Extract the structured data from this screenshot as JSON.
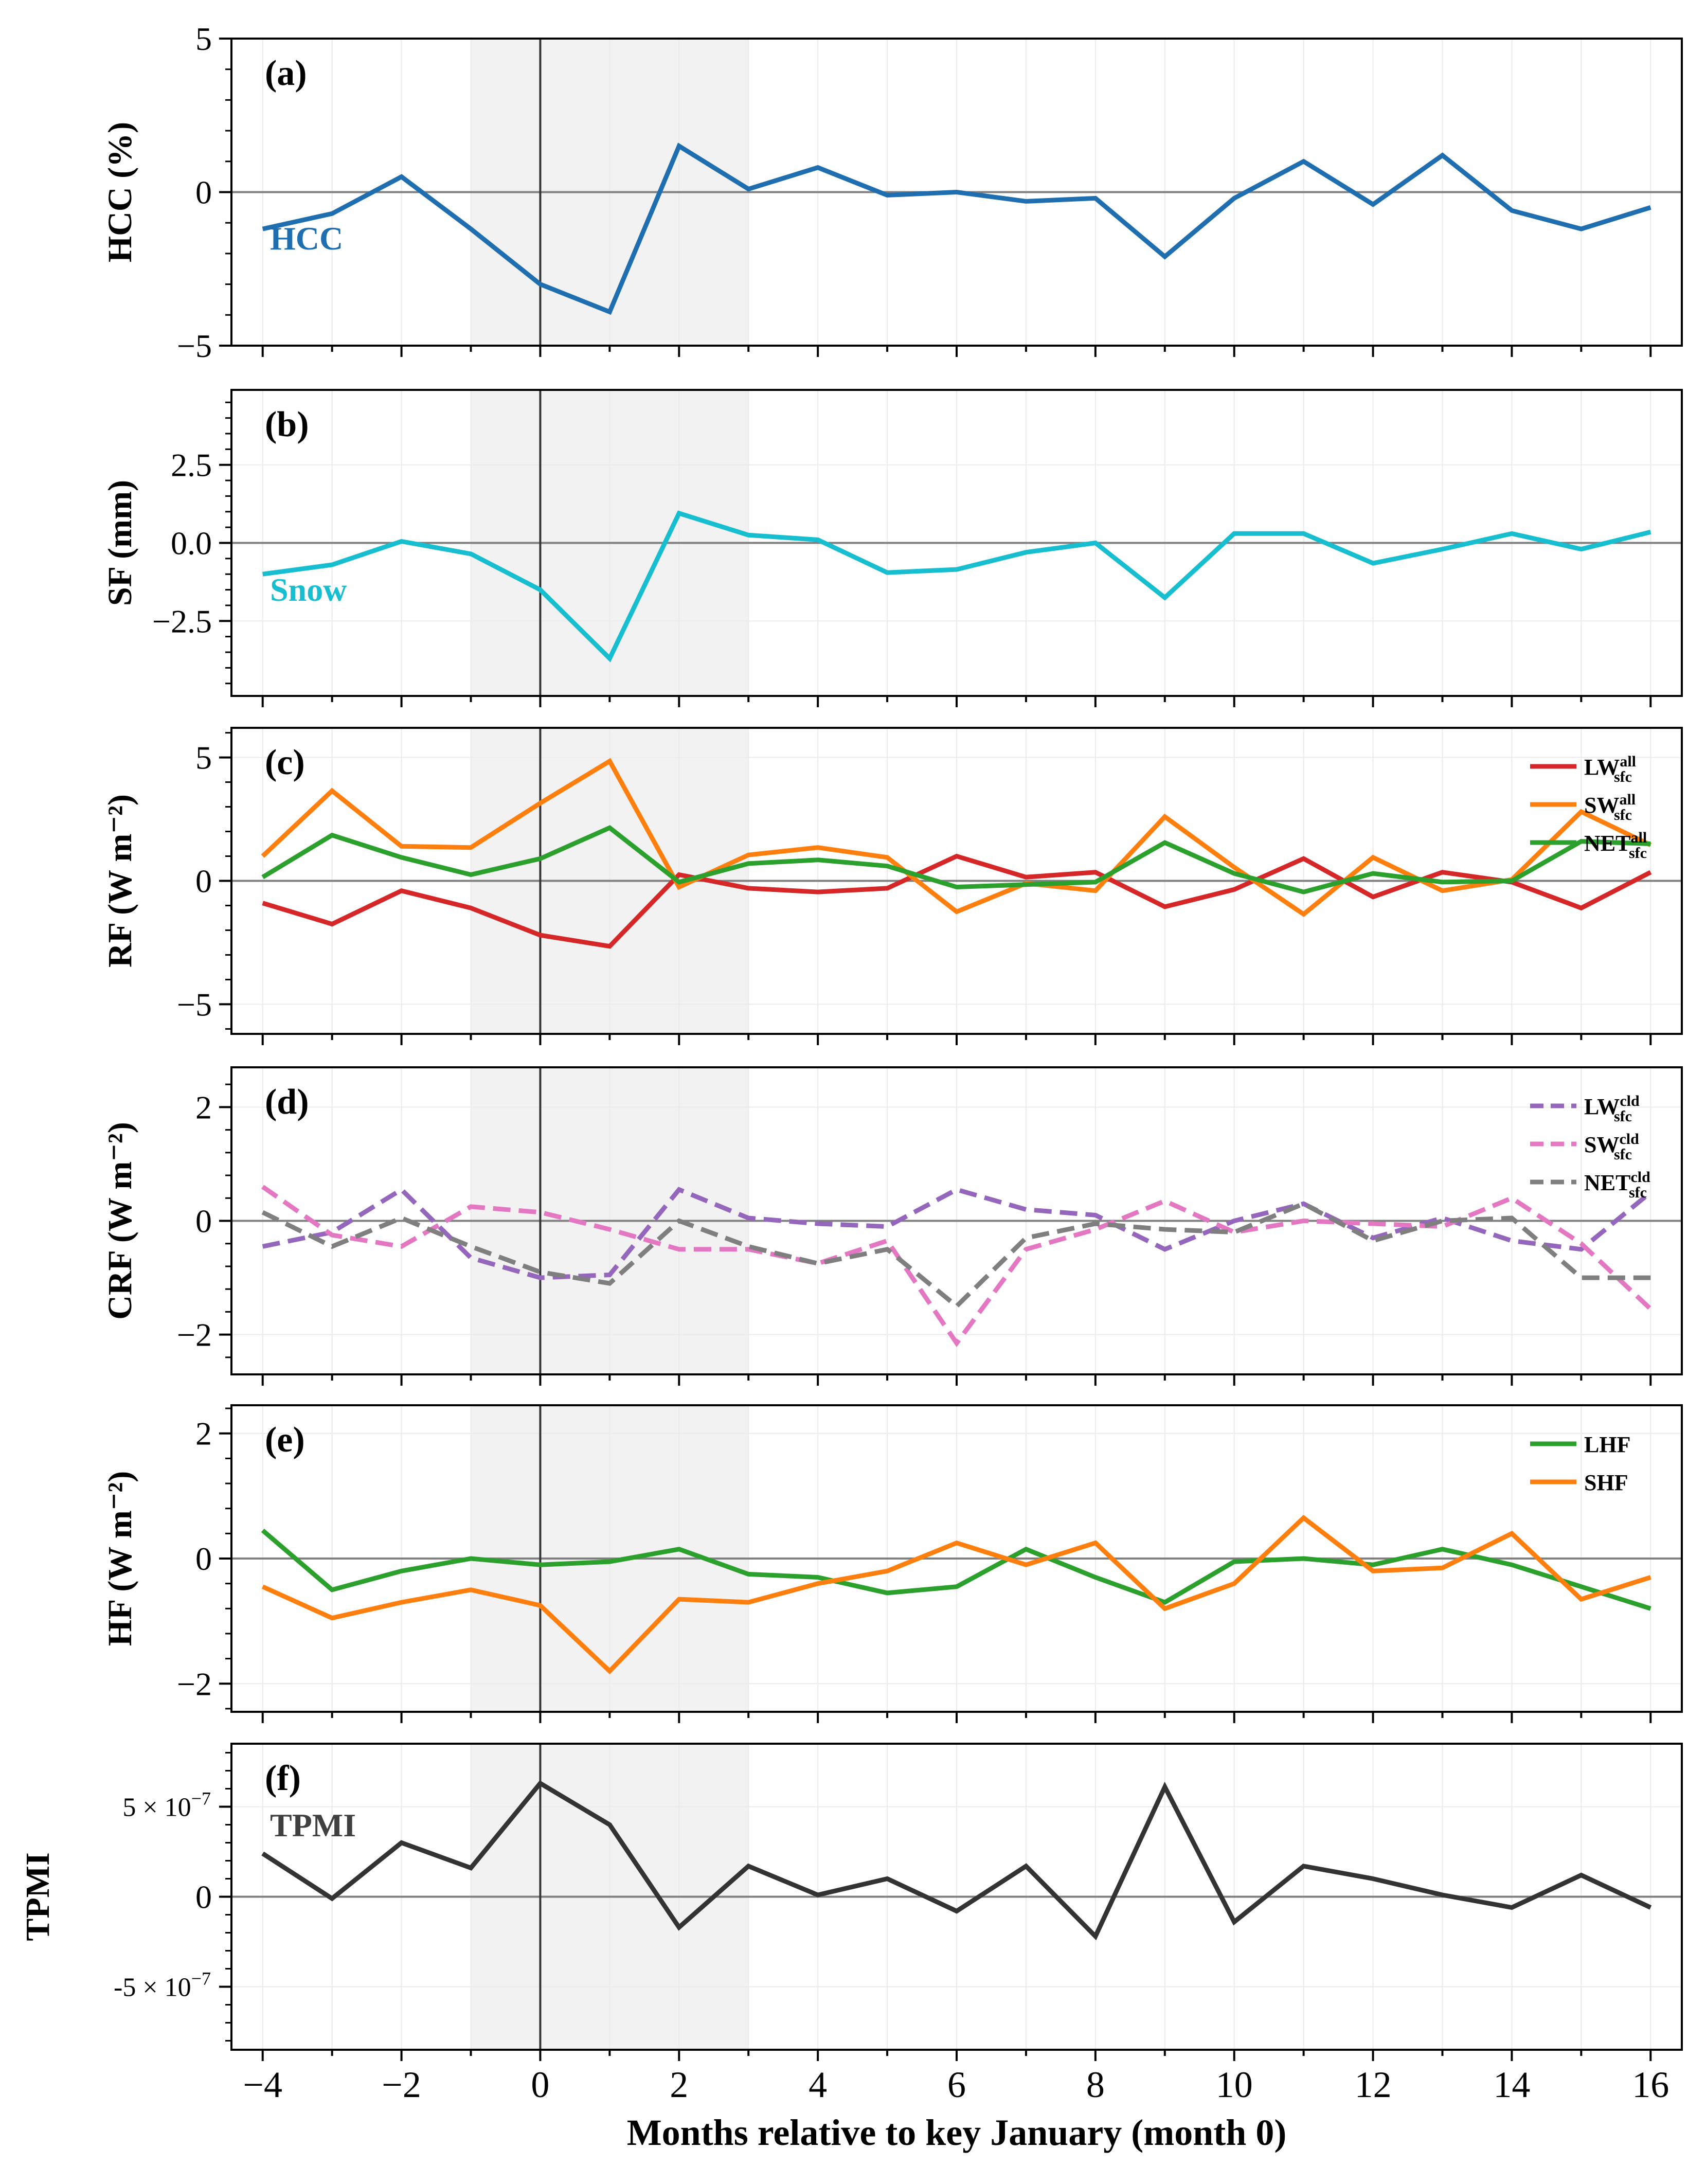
{
  "xlabel": "Months relative to key January (month 0)",
  "x_ticks": [
    "−4",
    "−2",
    "0",
    "2",
    "4",
    "6",
    "8",
    "10",
    "12",
    "14",
    "16"
  ],
  "shaded_region_months": [
    -1,
    3
  ],
  "key_month": 0,
  "chart_data": [
    {
      "panel": "(a)",
      "type": "line",
      "ylabel": "HCC (%)",
      "ylim": [
        -5,
        5
      ],
      "yticks": [
        {
          "v": 5,
          "label": "5"
        },
        {
          "v": 0,
          "label": "0"
        },
        {
          "v": -5,
          "label": "−5"
        }
      ],
      "x": [
        -4,
        -3,
        -2,
        -1,
        0,
        1,
        2,
        3,
        4,
        5,
        6,
        7,
        8,
        9,
        10,
        11,
        12,
        13,
        14,
        15,
        16
      ],
      "inline_label": {
        "text": "HCC",
        "color": "#1f6fb0"
      },
      "series": [
        {
          "name": "HCC",
          "color": "#1f6fb0",
          "dash": "solid",
          "values": [
            -1.2,
            -0.7,
            0.5,
            -1.2,
            -3.0,
            -3.9,
            1.5,
            0.1,
            0.8,
            -0.1,
            0.0,
            -0.3,
            -0.2,
            -2.1,
            -0.2,
            1.0,
            -0.4,
            1.2,
            -0.6,
            -1.2,
            -0.5
          ]
        }
      ],
      "legend": []
    },
    {
      "panel": "(b)",
      "type": "line",
      "ylabel": "SF (mm)",
      "ylim": [
        -4.9,
        4.9
      ],
      "yticks": [
        {
          "v": 2.5,
          "label": "2.5"
        },
        {
          "v": 0,
          "label": "0.0"
        },
        {
          "v": -2.5,
          "label": "−2.5"
        }
      ],
      "x": [
        -4,
        -3,
        -2,
        -1,
        0,
        1,
        2,
        3,
        4,
        5,
        6,
        7,
        8,
        9,
        10,
        11,
        12,
        13,
        14,
        15,
        16
      ],
      "inline_label": {
        "text": "Snow",
        "color": "#17becf"
      },
      "series": [
        {
          "name": "Snow",
          "color": "#17becf",
          "dash": "solid",
          "values": [
            -1.0,
            -0.7,
            0.05,
            -0.35,
            -1.5,
            -3.7,
            0.95,
            0.25,
            0.1,
            -0.95,
            -0.85,
            -0.3,
            0.0,
            -1.75,
            0.3,
            0.3,
            -0.65,
            -0.2,
            0.3,
            -0.2,
            0.35
          ]
        }
      ],
      "legend": []
    },
    {
      "panel": "(c)",
      "type": "line",
      "ylabel": "RF (W m⁻²)",
      "ylim": [
        -6.2,
        6.2
      ],
      "yticks": [
        {
          "v": 5,
          "label": "5"
        },
        {
          "v": 0,
          "label": "0"
        },
        {
          "v": -5,
          "label": "−5"
        }
      ],
      "x": [
        -4,
        -3,
        -2,
        -1,
        0,
        1,
        2,
        3,
        4,
        5,
        6,
        7,
        8,
        9,
        10,
        11,
        12,
        13,
        14,
        15,
        16
      ],
      "series": [
        {
          "name": "LW",
          "color": "#d62728",
          "dash": "solid",
          "values": [
            -0.9,
            -1.75,
            -0.4,
            -1.1,
            -2.2,
            -2.65,
            0.25,
            -0.3,
            -0.45,
            -0.3,
            1.0,
            0.15,
            0.35,
            -1.05,
            -0.35,
            0.9,
            -0.65,
            0.35,
            -0.05,
            -1.1,
            0.35
          ]
        },
        {
          "name": "SW",
          "color": "#ff7f0e",
          "dash": "solid",
          "values": [
            1.0,
            3.65,
            1.4,
            1.35,
            3.15,
            4.85,
            -0.25,
            1.05,
            1.35,
            0.95,
            -1.25,
            -0.1,
            -0.4,
            2.6,
            0.55,
            -1.35,
            0.95,
            -0.4,
            0.05,
            2.8,
            1.45
          ]
        },
        {
          "name": "NET",
          "color": "#2ca02c",
          "dash": "solid",
          "values": [
            0.15,
            1.85,
            0.95,
            0.25,
            0.9,
            2.15,
            -0.05,
            0.7,
            0.85,
            0.6,
            -0.25,
            -0.15,
            -0.05,
            1.55,
            0.3,
            -0.45,
            0.3,
            -0.05,
            0.0,
            1.6,
            1.5
          ]
        }
      ],
      "legend": [
        {
          "base": "LW",
          "sup": "all",
          "sub": "sfc",
          "color": "#d62728",
          "dash": "solid"
        },
        {
          "base": "SW",
          "sup": "all",
          "sub": "sfc",
          "color": "#ff7f0e",
          "dash": "solid"
        },
        {
          "base": "NET",
          "sup": "all",
          "sub": "sfc",
          "color": "#2ca02c",
          "dash": "solid"
        }
      ]
    },
    {
      "panel": "(d)",
      "type": "line",
      "ylabel": "CRF (W m⁻²)",
      "ylim": [
        -2.7,
        2.7
      ],
      "yticks": [
        {
          "v": 2,
          "label": "2"
        },
        {
          "v": 0,
          "label": "0"
        },
        {
          "v": -2,
          "label": "−2"
        }
      ],
      "x": [
        -4,
        -3,
        -2,
        -1,
        0,
        1,
        2,
        3,
        4,
        5,
        6,
        7,
        8,
        9,
        10,
        11,
        12,
        13,
        14,
        15,
        16
      ],
      "series": [
        {
          "name": "LW cld",
          "color": "#9467bd",
          "dash": "dashed",
          "values": [
            -0.45,
            -0.2,
            0.55,
            -0.65,
            -1.0,
            -0.95,
            0.55,
            0.05,
            -0.05,
            -0.1,
            0.55,
            0.2,
            0.1,
            -0.5,
            0.0,
            0.3,
            -0.3,
            0.05,
            -0.35,
            -0.5,
            0.5
          ]
        },
        {
          "name": "SW cld",
          "color": "#e377c2",
          "dash": "dashed",
          "values": [
            0.6,
            -0.25,
            -0.45,
            0.25,
            0.15,
            -0.15,
            -0.5,
            -0.5,
            -0.75,
            -0.35,
            -2.15,
            -0.5,
            -0.15,
            0.35,
            -0.2,
            0.0,
            -0.05,
            -0.1,
            0.4,
            -0.4,
            -1.55
          ]
        },
        {
          "name": "NET cld",
          "color": "#7f7f7f",
          "dash": "dashed",
          "values": [
            0.15,
            -0.45,
            0.05,
            -0.45,
            -0.9,
            -1.1,
            0.0,
            -0.45,
            -0.75,
            -0.5,
            -1.5,
            -0.3,
            -0.05,
            -0.15,
            -0.2,
            0.3,
            -0.35,
            0.0,
            0.05,
            -1.0,
            -1.0
          ]
        }
      ],
      "legend": [
        {
          "base": "LW",
          "sup": "cld",
          "sub": "sfc",
          "color": "#9467bd",
          "dash": "dashed"
        },
        {
          "base": "SW",
          "sup": "cld",
          "sub": "sfc",
          "color": "#e377c2",
          "dash": "dashed"
        },
        {
          "base": "NET",
          "sup": "cld",
          "sub": "sfc",
          "color": "#7f7f7f",
          "dash": "dashed"
        }
      ]
    },
    {
      "panel": "(e)",
      "type": "line",
      "ylabel": "HF (W m⁻²)",
      "ylim": [
        -2.45,
        2.45
      ],
      "yticks": [
        {
          "v": 2,
          "label": "2"
        },
        {
          "v": 0,
          "label": "0"
        },
        {
          "v": -2,
          "label": "−2"
        }
      ],
      "x": [
        -4,
        -3,
        -2,
        -1,
        0,
        1,
        2,
        3,
        4,
        5,
        6,
        7,
        8,
        9,
        10,
        11,
        12,
        13,
        14,
        15,
        16
      ],
      "series": [
        {
          "name": "LHF",
          "color": "#2ca02c",
          "dash": "solid",
          "values": [
            0.45,
            -0.5,
            -0.2,
            0.0,
            -0.1,
            -0.05,
            0.15,
            -0.25,
            -0.3,
            -0.55,
            -0.45,
            0.15,
            -0.3,
            -0.7,
            -0.05,
            0.0,
            -0.1,
            0.15,
            -0.1,
            -0.45,
            -0.8
          ]
        },
        {
          "name": "SHF",
          "color": "#ff7f0e",
          "dash": "solid",
          "values": [
            -0.45,
            -0.95,
            -0.7,
            -0.5,
            -0.75,
            -1.8,
            -0.65,
            -0.7,
            -0.4,
            -0.2,
            0.25,
            -0.1,
            0.25,
            -0.8,
            -0.4,
            0.65,
            -0.2,
            -0.15,
            0.4,
            -0.65,
            -0.3
          ]
        }
      ],
      "legend": [
        {
          "base": "LHF",
          "sup": "",
          "sub": "",
          "color": "#2ca02c",
          "dash": "solid"
        },
        {
          "base": "SHF",
          "sup": "",
          "sub": "",
          "color": "#ff7f0e",
          "dash": "solid"
        }
      ]
    },
    {
      "panel": "(f)",
      "type": "line",
      "ylabel": "TPMI",
      "ylim": [
        -8.5e-07,
        8.5e-07
      ],
      "yticks": [
        {
          "v": 5e-07,
          "label": "5 × 10",
          "exp": "−7"
        },
        {
          "v": 0,
          "label": "0"
        },
        {
          "v": -5e-07,
          "label": "-5 × 10",
          "exp": "−7"
        }
      ],
      "x": [
        -4,
        -3,
        -2,
        -1,
        0,
        1,
        2,
        3,
        4,
        5,
        6,
        7,
        8,
        9,
        10,
        11,
        12,
        13,
        14,
        15,
        16
      ],
      "inline_label": {
        "text": "TPMI",
        "color": "#404040"
      },
      "series": [
        {
          "name": "TPMI",
          "color": "#333333",
          "dash": "solid",
          "values": [
            2.4e-07,
            -1e-08,
            3e-07,
            1.6e-07,
            6.3e-07,
            4e-07,
            -1.7e-07,
            1.7e-07,
            1e-08,
            1e-07,
            -8e-08,
            1.7e-07,
            -2.2e-07,
            6.1e-07,
            -1.4e-07,
            1.7e-07,
            1e-07,
            1e-08,
            -6e-08,
            1.2e-07,
            -6e-08
          ]
        }
      ],
      "legend": []
    }
  ]
}
